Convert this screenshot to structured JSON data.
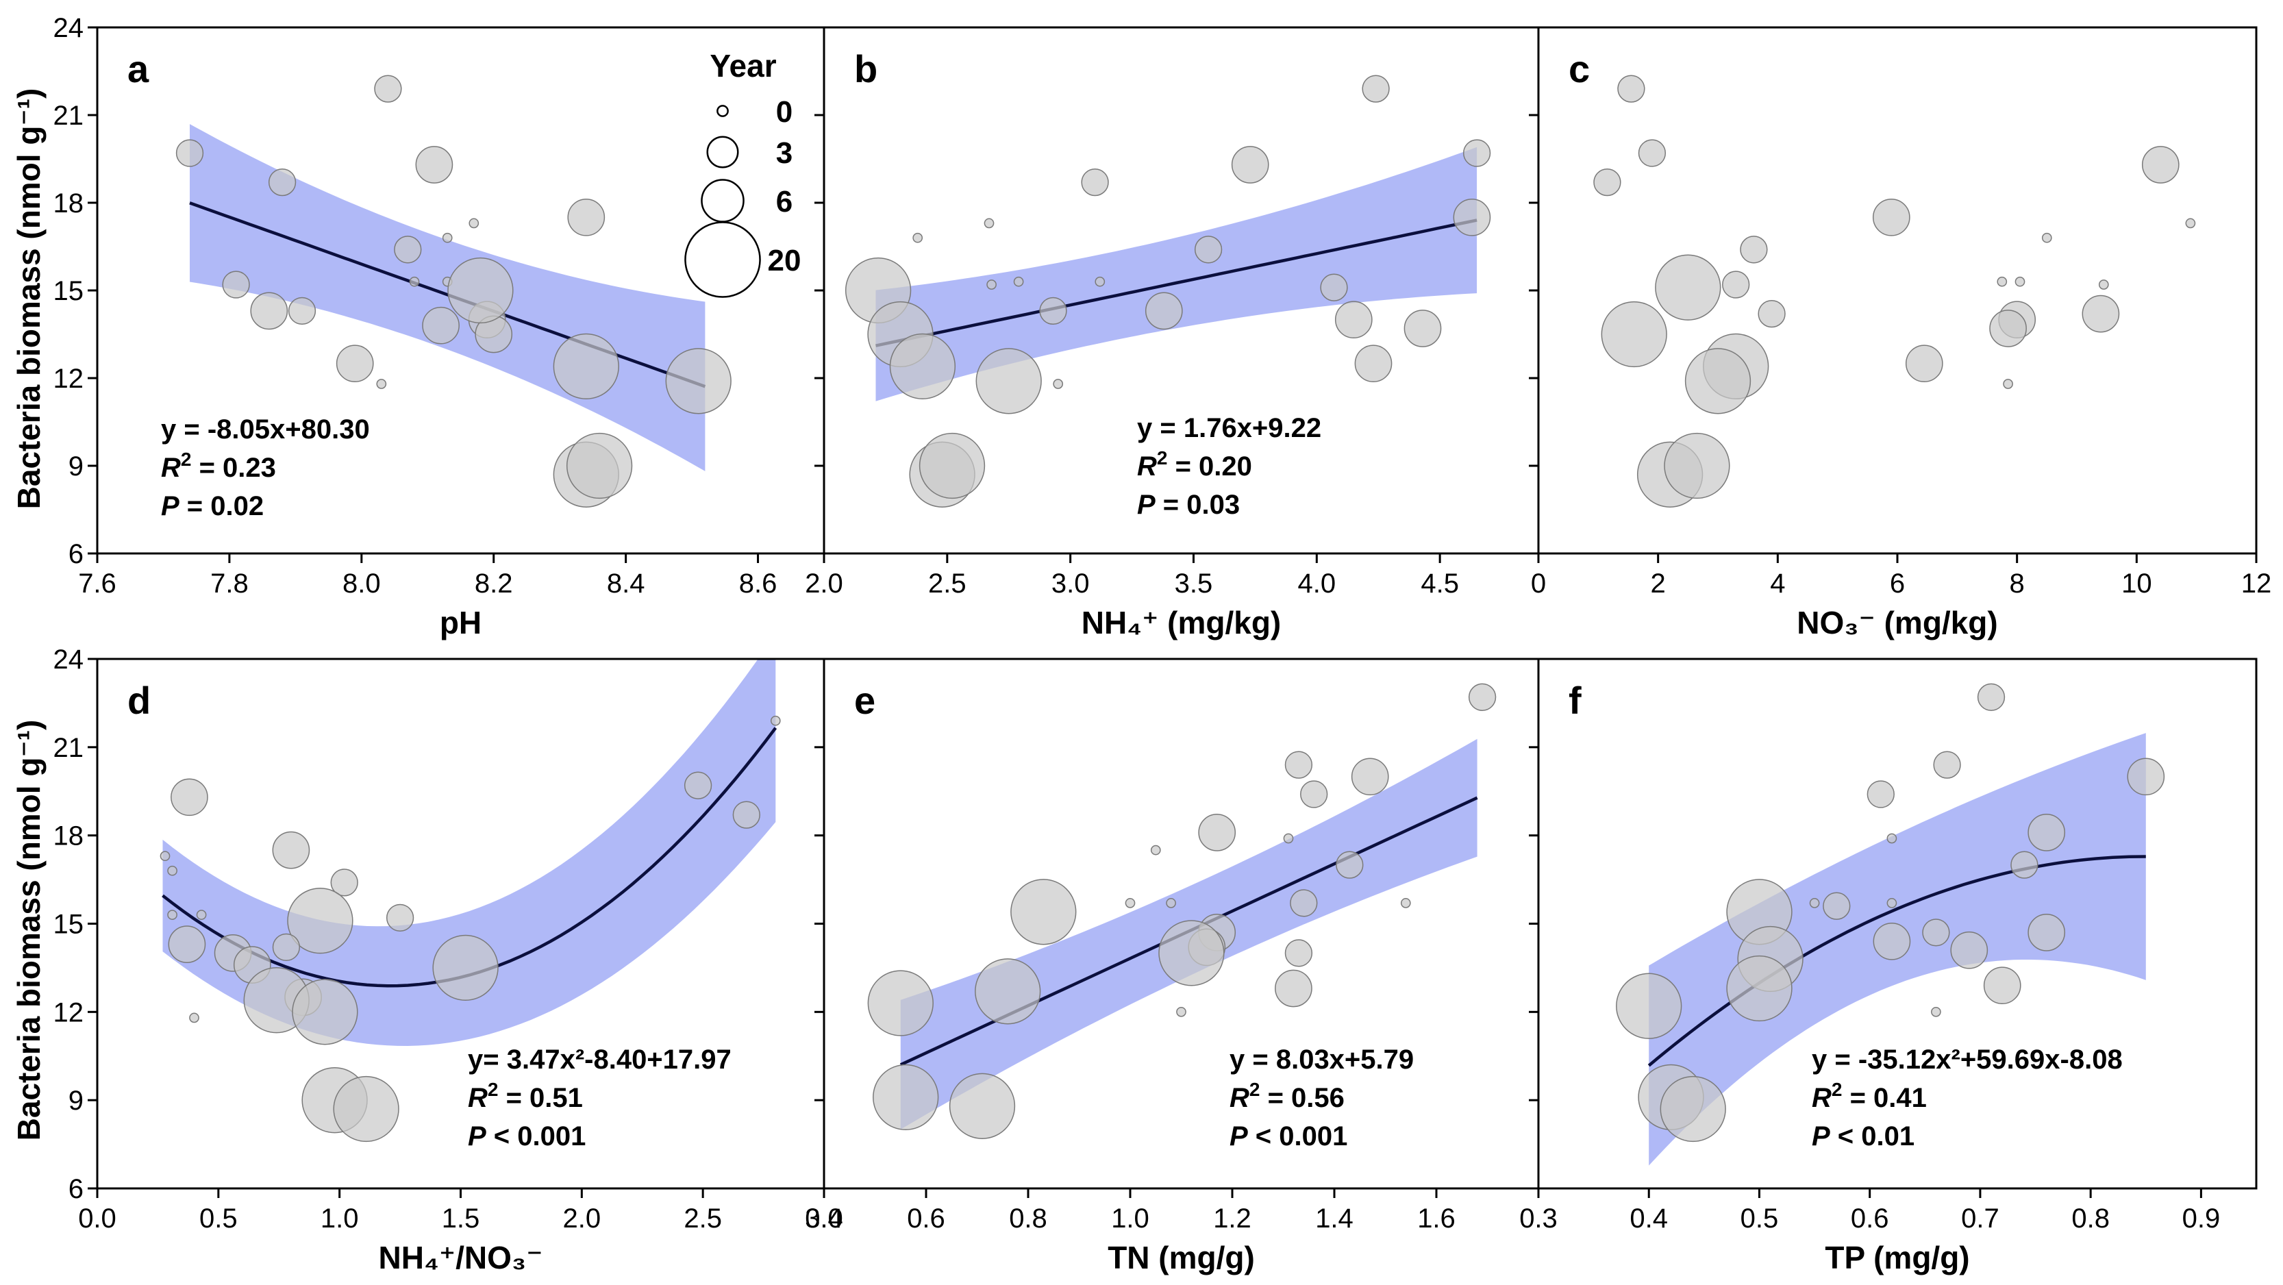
{
  "y_axis_label": "Bacteria biomass (nmol g⁻¹)",
  "legend": {
    "title": "Year",
    "entries": [
      {
        "label": "0",
        "year": 0
      },
      {
        "label": "3",
        "year": 3
      },
      {
        "label": "6",
        "year": 6
      },
      {
        "label": "20",
        "year": 20
      }
    ]
  },
  "chart_data": [
    {
      "panel": "a",
      "type": "scatter",
      "xlabel": "pH",
      "ylabel": "Bacteria biomass (nmol g⁻¹)",
      "xlim": [
        7.6,
        8.7
      ],
      "ylim": [
        6,
        24
      ],
      "x_ticks": [
        7.6,
        7.8,
        8.0,
        8.2,
        8.4,
        8.6
      ],
      "x_tick_labels": [
        "7.6",
        "7.8",
        "8.0",
        "8.2",
        "8.4",
        "8.6"
      ],
      "y_ticks": [
        6,
        9,
        12,
        15,
        18,
        21,
        24
      ],
      "y_tick_labels": [
        "6",
        "9",
        "12",
        "15",
        "18",
        "21",
        "24"
      ],
      "fit": {
        "kind": "linear",
        "coef": [
          -8.05,
          80.3
        ],
        "x_range": [
          7.74,
          8.52
        ],
        "ci_start": 2.7,
        "ci_mid": 0.95,
        "ci_end": 2.9
      },
      "equation_lines": [
        "y = -8.05x+80.30",
        "0.23",
        "0.02"
      ],
      "r2_label": "R",
      "p_label": "P",
      "p_op": "=",
      "points": [
        {
          "x": 7.74,
          "y": 19.7,
          "year": 3
        },
        {
          "x": 7.88,
          "y": 18.7,
          "year": 3
        },
        {
          "x": 8.04,
          "y": 21.9,
          "year": 3
        },
        {
          "x": 8.11,
          "y": 19.3,
          "year": 6
        },
        {
          "x": 8.13,
          "y": 16.8,
          "year": 0
        },
        {
          "x": 8.17,
          "y": 17.3,
          "year": 0
        },
        {
          "x": 8.07,
          "y": 16.4,
          "year": 3
        },
        {
          "x": 7.81,
          "y": 15.2,
          "year": 3
        },
        {
          "x": 7.86,
          "y": 14.3,
          "year": 6
        },
        {
          "x": 7.91,
          "y": 14.3,
          "year": 3
        },
        {
          "x": 8.08,
          "y": 15.3,
          "year": 0
        },
        {
          "x": 8.13,
          "y": 15.3,
          "year": 0
        },
        {
          "x": 8.12,
          "y": 13.8,
          "year": 6
        },
        {
          "x": 8.19,
          "y": 14.0,
          "year": 6
        },
        {
          "x": 8.2,
          "y": 13.5,
          "year": 6
        },
        {
          "x": 8.18,
          "y": 15.0,
          "year": 20
        },
        {
          "x": 7.99,
          "y": 12.5,
          "year": 6
        },
        {
          "x": 8.03,
          "y": 11.8,
          "year": 0
        },
        {
          "x": 8.34,
          "y": 17.5,
          "year": 6
        },
        {
          "x": 8.34,
          "y": 12.4,
          "year": 20
        },
        {
          "x": 8.51,
          "y": 11.9,
          "year": 20
        },
        {
          "x": 8.34,
          "y": 8.7,
          "year": 20
        },
        {
          "x": 8.36,
          "y": 9.0,
          "year": 20
        }
      ]
    },
    {
      "panel": "b",
      "type": "scatter",
      "xlabel": "NH₄⁺ (mg/kg)",
      "ylabel": "",
      "xlim": [
        2.0,
        4.9
      ],
      "ylim": [
        6,
        24
      ],
      "x_ticks": [
        2.0,
        2.5,
        3.0,
        3.5,
        4.0,
        4.5
      ],
      "x_tick_labels": [
        "2.0",
        "2.5",
        "3.0",
        "3.5",
        "4.0",
        "4.5"
      ],
      "y_ticks": [
        6,
        9,
        12,
        15,
        18,
        21,
        24
      ],
      "y_tick_labels": [],
      "fit": {
        "kind": "linear",
        "coef": [
          1.76,
          9.22
        ],
        "x_range": [
          2.21,
          4.65
        ],
        "ci_start": 1.9,
        "ci_mid": 0.9,
        "ci_end": 2.5
      },
      "equation_lines": [
        "y = 1.76x+9.22",
        "0.20",
        "0.03"
      ],
      "r2_label": "R",
      "p_label": "P",
      "p_op": "=",
      "points": [
        {
          "x": 4.24,
          "y": 21.9,
          "year": 3
        },
        {
          "x": 4.65,
          "y": 19.7,
          "year": 3
        },
        {
          "x": 3.73,
          "y": 19.3,
          "year": 6
        },
        {
          "x": 3.1,
          "y": 18.7,
          "year": 3
        },
        {
          "x": 2.38,
          "y": 16.8,
          "year": 0
        },
        {
          "x": 2.67,
          "y": 17.3,
          "year": 0
        },
        {
          "x": 4.63,
          "y": 17.5,
          "year": 6
        },
        {
          "x": 3.56,
          "y": 16.4,
          "year": 3
        },
        {
          "x": 2.22,
          "y": 15.0,
          "year": 20
        },
        {
          "x": 2.68,
          "y": 15.2,
          "year": 0
        },
        {
          "x": 2.79,
          "y": 15.3,
          "year": 0
        },
        {
          "x": 3.12,
          "y": 15.3,
          "year": 0
        },
        {
          "x": 4.07,
          "y": 15.1,
          "year": 3
        },
        {
          "x": 2.31,
          "y": 13.5,
          "year": 20
        },
        {
          "x": 2.93,
          "y": 14.3,
          "year": 3
        },
        {
          "x": 3.38,
          "y": 14.3,
          "year": 6
        },
        {
          "x": 4.15,
          "y": 14.0,
          "year": 6
        },
        {
          "x": 4.43,
          "y": 13.7,
          "year": 6
        },
        {
          "x": 2.4,
          "y": 12.4,
          "year": 20
        },
        {
          "x": 2.75,
          "y": 11.9,
          "year": 20
        },
        {
          "x": 2.95,
          "y": 11.8,
          "year": 0
        },
        {
          "x": 4.23,
          "y": 12.5,
          "year": 6
        },
        {
          "x": 2.48,
          "y": 8.7,
          "year": 20
        },
        {
          "x": 2.52,
          "y": 9.0,
          "year": 20
        }
      ]
    },
    {
      "panel": "c",
      "type": "scatter",
      "xlabel": "NO₃⁻ (mg/kg)",
      "ylabel": "",
      "xlim": [
        0,
        12
      ],
      "ylim": [
        6,
        24
      ],
      "x_ticks": [
        0,
        2,
        4,
        6,
        8,
        10,
        12
      ],
      "x_tick_labels": [
        "0",
        "2",
        "4",
        "6",
        "8",
        "10",
        "12"
      ],
      "y_ticks": [
        6,
        9,
        12,
        15,
        18,
        21,
        24
      ],
      "y_tick_labels": [],
      "fit": null,
      "equation_lines": [],
      "points": [
        {
          "x": 1.55,
          "y": 21.9,
          "year": 3
        },
        {
          "x": 1.9,
          "y": 19.7,
          "year": 3
        },
        {
          "x": 1.15,
          "y": 18.7,
          "year": 3
        },
        {
          "x": 10.4,
          "y": 19.3,
          "year": 6
        },
        {
          "x": 10.9,
          "y": 17.3,
          "year": 0
        },
        {
          "x": 5.9,
          "y": 17.5,
          "year": 6
        },
        {
          "x": 3.6,
          "y": 16.4,
          "year": 3
        },
        {
          "x": 8.5,
          "y": 16.8,
          "year": 0
        },
        {
          "x": 2.5,
          "y": 15.1,
          "year": 20
        },
        {
          "x": 3.3,
          "y": 15.2,
          "year": 3
        },
        {
          "x": 7.75,
          "y": 15.3,
          "year": 0
        },
        {
          "x": 8.05,
          "y": 15.3,
          "year": 0
        },
        {
          "x": 9.45,
          "y": 15.2,
          "year": 0
        },
        {
          "x": 3.9,
          "y": 14.2,
          "year": 3
        },
        {
          "x": 1.6,
          "y": 13.5,
          "year": 20
        },
        {
          "x": 8.0,
          "y": 14.0,
          "year": 6
        },
        {
          "x": 7.85,
          "y": 13.7,
          "year": 6
        },
        {
          "x": 9.4,
          "y": 14.2,
          "year": 6
        },
        {
          "x": 6.45,
          "y": 12.5,
          "year": 6
        },
        {
          "x": 3.3,
          "y": 12.4,
          "year": 20
        },
        {
          "x": 3.0,
          "y": 11.9,
          "year": 20
        },
        {
          "x": 7.85,
          "y": 11.8,
          "year": 0
        },
        {
          "x": 2.2,
          "y": 8.7,
          "year": 20
        },
        {
          "x": 2.65,
          "y": 9.0,
          "year": 20
        }
      ]
    },
    {
      "panel": "d",
      "type": "scatter",
      "xlabel": "NH₄⁺/NO₃⁻",
      "ylabel": "Bacteria biomass (nmol g⁻¹)",
      "xlim": [
        0.0,
        3.0
      ],
      "ylim": [
        6,
        24
      ],
      "x_ticks": [
        0.0,
        0.5,
        1.0,
        1.5,
        2.0,
        2.5,
        3.0
      ],
      "x_tick_labels": [
        "0.0",
        "0.5",
        "1.0",
        "1.5",
        "2.0",
        "2.5",
        "3.0"
      ],
      "y_ticks": [
        6,
        9,
        12,
        15,
        18,
        21,
        24
      ],
      "y_tick_labels": [
        "6",
        "9",
        "12",
        "15",
        "18",
        "21",
        "24"
      ],
      "fit": {
        "kind": "quadratic",
        "coef": [
          3.47,
          -8.4,
          17.97
        ],
        "x_range": [
          0.27,
          2.8
        ],
        "ci_start": 1.9,
        "ci_mid": 1.8,
        "ci_end": 3.2
      },
      "equation_lines": [
        "y= 3.47x²-8.40+17.97",
        "0.51",
        "0.001"
      ],
      "r2_label": "R",
      "p_label": "P",
      "p_op": "<",
      "points": [
        {
          "x": 2.8,
          "y": 21.9,
          "year": 0
        },
        {
          "x": 2.48,
          "y": 19.7,
          "year": 3
        },
        {
          "x": 2.68,
          "y": 18.7,
          "year": 3
        },
        {
          "x": 0.38,
          "y": 19.3,
          "year": 6
        },
        {
          "x": 0.8,
          "y": 17.5,
          "year": 6
        },
        {
          "x": 0.28,
          "y": 17.3,
          "year": 0
        },
        {
          "x": 0.31,
          "y": 16.8,
          "year": 0
        },
        {
          "x": 1.02,
          "y": 16.4,
          "year": 3
        },
        {
          "x": 0.31,
          "y": 15.3,
          "year": 0
        },
        {
          "x": 0.43,
          "y": 15.3,
          "year": 0
        },
        {
          "x": 0.92,
          "y": 15.1,
          "year": 20
        },
        {
          "x": 1.25,
          "y": 15.2,
          "year": 3
        },
        {
          "x": 0.37,
          "y": 14.3,
          "year": 6
        },
        {
          "x": 0.56,
          "y": 14.0,
          "year": 6
        },
        {
          "x": 0.78,
          "y": 14.2,
          "year": 3
        },
        {
          "x": 0.64,
          "y": 13.6,
          "year": 6
        },
        {
          "x": 1.52,
          "y": 13.5,
          "year": 20
        },
        {
          "x": 0.85,
          "y": 12.5,
          "year": 6
        },
        {
          "x": 0.74,
          "y": 12.4,
          "year": 20
        },
        {
          "x": 0.94,
          "y": 12.0,
          "year": 20
        },
        {
          "x": 0.4,
          "y": 11.8,
          "year": 0
        },
        {
          "x": 0.98,
          "y": 9.0,
          "year": 20
        },
        {
          "x": 1.11,
          "y": 8.7,
          "year": 20
        }
      ]
    },
    {
      "panel": "e",
      "type": "scatter",
      "xlabel": "TN (mg/g)",
      "ylabel": "",
      "xlim": [
        0.4,
        1.8
      ],
      "ylim": [
        6,
        24
      ],
      "x_ticks": [
        0.4,
        0.6,
        0.8,
        1.0,
        1.2,
        1.4,
        1.6
      ],
      "x_tick_labels": [
        "0.4",
        "0.6",
        "0.8",
        "1.0",
        "1.2",
        "1.4",
        "1.6"
      ],
      "y_ticks": [
        6,
        9,
        12,
        15,
        18,
        21,
        24
      ],
      "y_tick_labels": [],
      "fit": {
        "kind": "linear",
        "coef": [
          8.03,
          5.79
        ],
        "x_range": [
          0.55,
          1.68
        ],
        "ci_start": 2.2,
        "ci_mid": 0.95,
        "ci_end": 2.0
      },
      "equation_lines": [
        "y = 8.03x+5.79",
        "0.56",
        "0.001"
      ],
      "r2_label": "R",
      "p_label": "P",
      "p_op": "<",
      "points": [
        {
          "x": 1.69,
          "y": 22.7,
          "year": 3
        },
        {
          "x": 1.33,
          "y": 20.4,
          "year": 3
        },
        {
          "x": 1.47,
          "y": 20.0,
          "year": 6
        },
        {
          "x": 1.36,
          "y": 19.4,
          "year": 3
        },
        {
          "x": 1.17,
          "y": 18.1,
          "year": 6
        },
        {
          "x": 1.31,
          "y": 17.9,
          "year": 0
        },
        {
          "x": 1.05,
          "y": 17.5,
          "year": 0
        },
        {
          "x": 1.43,
          "y": 17.0,
          "year": 3
        },
        {
          "x": 0.83,
          "y": 15.4,
          "year": 20
        },
        {
          "x": 1.0,
          "y": 15.7,
          "year": 0
        },
        {
          "x": 1.08,
          "y": 15.7,
          "year": 0
        },
        {
          "x": 1.34,
          "y": 15.7,
          "year": 3
        },
        {
          "x": 1.54,
          "y": 15.7,
          "year": 0
        },
        {
          "x": 1.17,
          "y": 14.7,
          "year": 6
        },
        {
          "x": 1.15,
          "y": 14.2,
          "year": 6
        },
        {
          "x": 1.12,
          "y": 14.0,
          "year": 20
        },
        {
          "x": 1.33,
          "y": 14.0,
          "year": 3
        },
        {
          "x": 0.76,
          "y": 12.7,
          "year": 20
        },
        {
          "x": 1.32,
          "y": 12.8,
          "year": 6
        },
        {
          "x": 0.55,
          "y": 12.3,
          "year": 20
        },
        {
          "x": 1.1,
          "y": 12.0,
          "year": 0
        },
        {
          "x": 0.56,
          "y": 9.1,
          "year": 20
        },
        {
          "x": 0.71,
          "y": 8.8,
          "year": 20
        }
      ]
    },
    {
      "panel": "f",
      "type": "scatter",
      "xlabel": "TP (mg/g)",
      "ylabel": "",
      "xlim": [
        0.3,
        0.95
      ],
      "ylim": [
        6,
        24
      ],
      "x_ticks": [
        0.3,
        0.4,
        0.5,
        0.6,
        0.7,
        0.8,
        0.9
      ],
      "x_tick_labels": [
        "0.3",
        "0.4",
        "0.5",
        "0.6",
        "0.7",
        "0.8",
        "0.9"
      ],
      "y_ticks": [
        6,
        9,
        12,
        15,
        18,
        21,
        24
      ],
      "y_tick_labels": [],
      "fit": {
        "kind": "quadratic",
        "coef": [
          -35.12,
          59.69,
          -8.08
        ],
        "x_range": [
          0.4,
          0.85
        ],
        "ci_start": 3.4,
        "ci_mid": 1.3,
        "ci_end": 4.2
      },
      "equation_lines": [
        "y = -35.12x²+59.69x-8.08",
        "0.41",
        "0.01"
      ],
      "r2_label": "R",
      "p_label": "P",
      "p_op": "<",
      "points": [
        {
          "x": 0.71,
          "y": 22.7,
          "year": 3
        },
        {
          "x": 0.67,
          "y": 20.4,
          "year": 3
        },
        {
          "x": 0.85,
          "y": 20.0,
          "year": 6
        },
        {
          "x": 0.61,
          "y": 19.4,
          "year": 3
        },
        {
          "x": 0.62,
          "y": 17.9,
          "year": 0
        },
        {
          "x": 0.76,
          "y": 18.1,
          "year": 6
        },
        {
          "x": 0.74,
          "y": 17.0,
          "year": 3
        },
        {
          "x": 0.5,
          "y": 15.4,
          "year": 20
        },
        {
          "x": 0.55,
          "y": 15.7,
          "year": 0
        },
        {
          "x": 0.57,
          "y": 15.6,
          "year": 3
        },
        {
          "x": 0.62,
          "y": 15.7,
          "year": 0
        },
        {
          "x": 0.76,
          "y": 14.7,
          "year": 6
        },
        {
          "x": 0.62,
          "y": 14.4,
          "year": 6
        },
        {
          "x": 0.66,
          "y": 14.7,
          "year": 3
        },
        {
          "x": 0.51,
          "y": 13.8,
          "year": 20
        },
        {
          "x": 0.69,
          "y": 14.1,
          "year": 6
        },
        {
          "x": 0.5,
          "y": 12.8,
          "year": 20
        },
        {
          "x": 0.72,
          "y": 12.9,
          "year": 6
        },
        {
          "x": 0.4,
          "y": 12.2,
          "year": 20
        },
        {
          "x": 0.66,
          "y": 12.0,
          "year": 0
        },
        {
          "x": 0.42,
          "y": 9.1,
          "year": 20
        },
        {
          "x": 0.44,
          "y": 8.7,
          "year": 20
        }
      ]
    }
  ]
}
